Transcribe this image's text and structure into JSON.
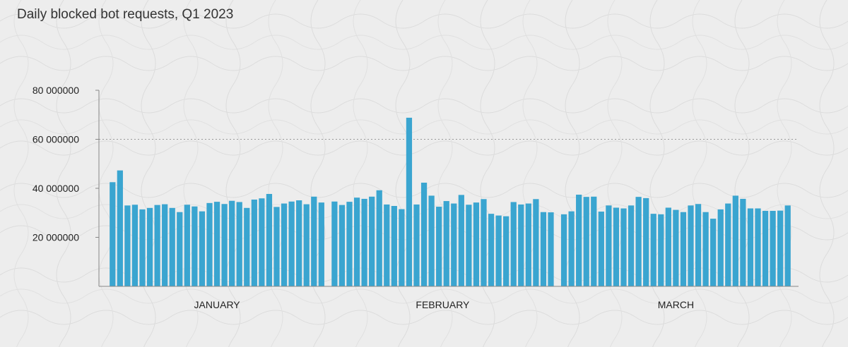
{
  "chart_data": {
    "type": "bar",
    "title": "Daily blocked bot requests, Q1 2023",
    "xlabel": "",
    "ylabel": "",
    "ylim": [
      0,
      80000000
    ],
    "yticks": [
      {
        "value": 20000000,
        "label": "20 000000"
      },
      {
        "value": 40000000,
        "label": "40 000000"
      },
      {
        "value": 60000000,
        "label": "60 000000"
      },
      {
        "value": 80000000,
        "label": "80 000000"
      }
    ],
    "reference_line": 60000000,
    "bar_color": "#3aa5d0",
    "months": [
      {
        "label": "JANUARY",
        "values": [
          42.5,
          47.3,
          33.0,
          33.3,
          31.4,
          32.0,
          33.2,
          33.5,
          32.0,
          30.3,
          33.3,
          32.6,
          30.6,
          34.0,
          34.5,
          33.6,
          34.9,
          34.4,
          32.0,
          35.4,
          35.9,
          37.7,
          32.4,
          33.8,
          34.6,
          35.1,
          33.5,
          36.6,
          34.2
        ]
      },
      {
        "label": "FEBRUARY",
        "values": [
          34.6,
          33.2,
          34.5,
          36.2,
          35.7,
          36.6,
          39.2,
          33.4,
          32.8,
          31.5,
          68.8,
          33.4,
          42.3,
          37.0,
          32.5,
          34.8,
          33.8,
          37.3,
          33.3,
          34.2,
          35.6,
          29.6,
          28.9,
          28.6,
          34.4,
          33.4,
          33.8,
          35.6,
          30.3,
          30.2
        ]
      },
      {
        "label": "MARCH",
        "values": [
          29.4,
          30.6,
          37.4,
          36.5,
          36.6,
          30.5,
          33.0,
          32.1,
          31.8,
          33.0,
          36.5,
          36.0,
          29.6,
          29.4,
          32.1,
          31.2,
          30.3,
          33.0,
          33.6,
          30.3,
          27.6,
          31.4,
          33.8,
          37.0,
          35.7,
          31.8,
          31.8,
          30.8,
          30.8,
          30.9,
          33.0
        ]
      }
    ]
  }
}
